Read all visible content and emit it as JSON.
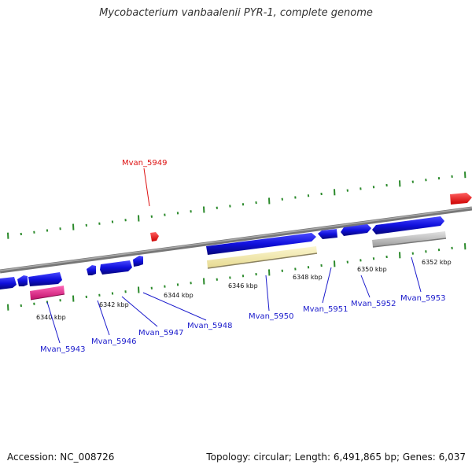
{
  "title": "Mycobacterium vanbaalenii PYR-1, complete genome",
  "footer": {
    "accession": "Accession: NC_008726",
    "summary": "Topology: circular; Length: 6,491,865 bp; Genes: 6,037"
  },
  "colors": {
    "backbone": "#8a8a8a",
    "cds": "#1010dd",
    "highlight": "#ff1a1a",
    "pink": "#ee2288",
    "yellow": "#f3eaa8",
    "gray_feature": "#c4c4c4",
    "tick": "#2b8a2b",
    "label_blue": "#1a1acc",
    "label_red": "#dd1111"
  },
  "scale_labels": [
    "6340 kbp",
    "6342 kbp",
    "6344 kbp",
    "6346 kbp",
    "6348 kbp",
    "6350 kbp",
    "6352 kbp"
  ],
  "gene_labels": [
    {
      "name": "Mvan_5949",
      "color": "red"
    },
    {
      "name": "Mvan_5943",
      "color": "blue"
    },
    {
      "name": "Mvan_5946",
      "color": "blue"
    },
    {
      "name": "Mvan_5947",
      "color": "blue"
    },
    {
      "name": "Mvan_5948",
      "color": "blue"
    },
    {
      "name": "Mvan_5950",
      "color": "blue"
    },
    {
      "name": "Mvan_5951",
      "color": "blue"
    },
    {
      "name": "Mvan_5952",
      "color": "blue"
    },
    {
      "name": "Mvan_5953",
      "color": "blue"
    }
  ]
}
